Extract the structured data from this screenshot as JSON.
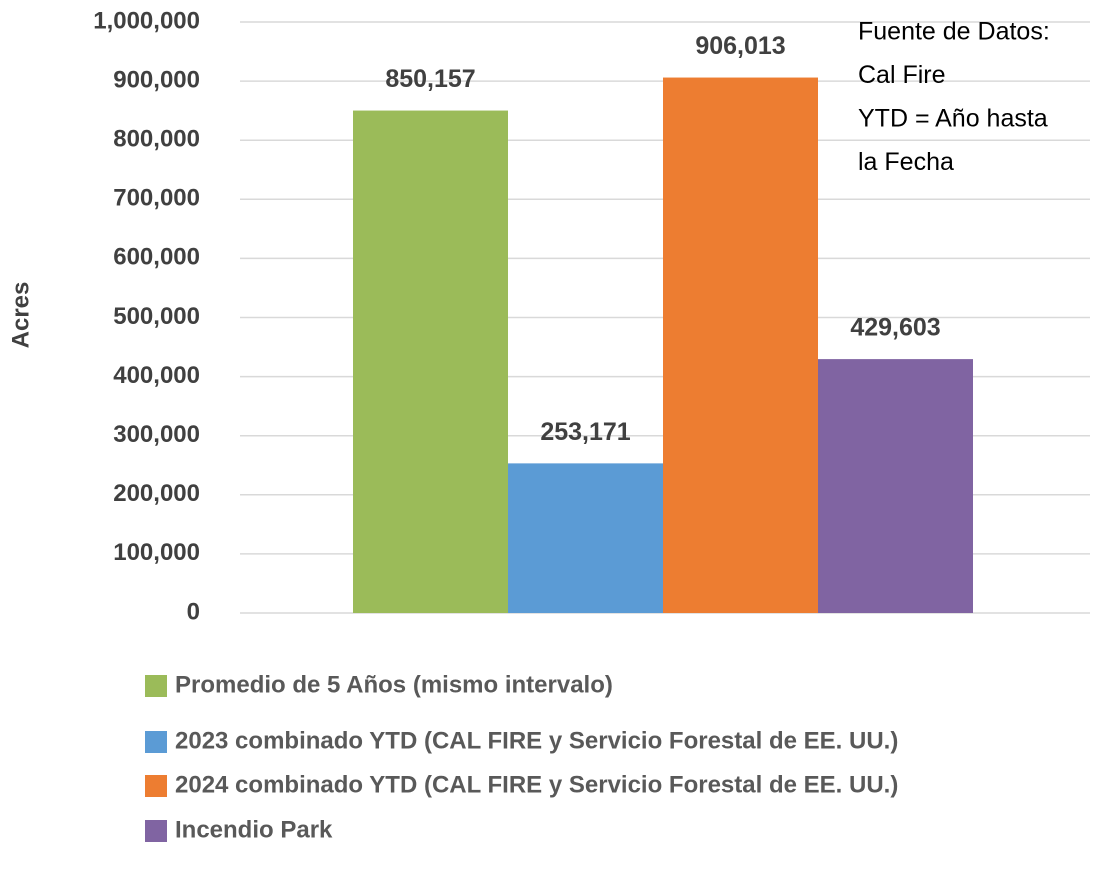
{
  "chart_data": {
    "type": "bar",
    "y_label": "Acres",
    "annotation_lines": [
      "Fuente de Datos:",
      "Cal Fire",
      "YTD = Año hasta",
      "la Fecha"
    ],
    "categories": [
      null
    ],
    "series": [
      {
        "name": "Promedio de 5 Años (mismo intervalo)",
        "color": "#9bbb59",
        "values": [
          850157
        ],
        "value_labels": [
          "850,157"
        ]
      },
      {
        "name": "2023 combinado YTD (CAL FIRE y Servicio Forestal de EE. UU.)",
        "color": "#5b9bd5",
        "values": [
          253171
        ],
        "value_labels": [
          "253,171"
        ]
      },
      {
        "name": "2024 combinado YTD (CAL FIRE y Servicio Forestal de EE. UU.)",
        "color": "#ed7d31",
        "values": [
          906013
        ],
        "value_labels": [
          "906,013"
        ]
      },
      {
        "name": "Incendio Park",
        "color": "#8064a2",
        "values": [
          429603
        ],
        "value_labels": [
          "429,603"
        ]
      }
    ],
    "ylim": [
      0,
      1000000
    ],
    "yticks": [
      0,
      {
        "value": 100000,
        "label": "100,000"
      },
      {
        "value": 200000,
        "label": "200,000"
      },
      {
        "value": 300000,
        "label": "300,000"
      },
      {
        "value": 400000,
        "label": "400,000"
      },
      {
        "value": 500000,
        "label": "500,000"
      },
      {
        "value": 600000,
        "label": "600,000"
      },
      {
        "value": 700000,
        "label": "700,000"
      },
      {
        "value": 800000,
        "label": "800,000"
      },
      {
        "value": 900000,
        "label": "900,000"
      },
      {
        "value": 1000000,
        "label": "1,000,000"
      }
    ],
    "grid": true,
    "legend": "bottom"
  }
}
